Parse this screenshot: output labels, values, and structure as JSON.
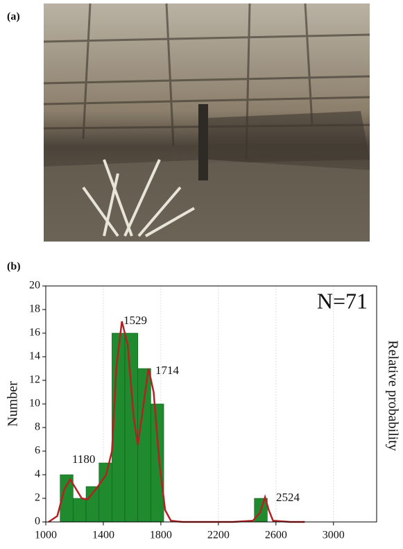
{
  "panels": [
    "(a)",
    "(b)"
  ],
  "chart_data": {
    "type": "histogram",
    "ylabel": "Number",
    "y2label": "Relative probability",
    "annotations": [
      "1180",
      "1529",
      "1714",
      "2524",
      "N=71"
    ],
    "bins": [
      1100,
      1190,
      1280,
      1370,
      1460,
      1550,
      1640,
      1730,
      1820,
      1910,
      2000,
      2090,
      2180,
      2270,
      2360,
      2450,
      2540
    ],
    "counts": [
      4,
      2,
      3,
      5,
      16,
      16,
      13,
      10,
      0,
      0,
      0,
      0,
      0,
      0,
      0,
      2
    ],
    "color": "#1f8a2e",
    "curve": {
      "color": "#b22222",
      "x": [
        1020,
        1080,
        1130,
        1170,
        1200,
        1250,
        1290,
        1350,
        1420,
        1460,
        1490,
        1529,
        1570,
        1610,
        1640,
        1680,
        1714,
        1750,
        1790,
        1830,
        1870,
        1950,
        2300,
        2440,
        2490,
        2524,
        2550,
        2580,
        2700,
        2800
      ],
      "values": [
        0,
        0.5,
        2.8,
        3.6,
        3,
        2,
        1.9,
        2.8,
        4,
        6,
        13,
        17,
        15,
        9,
        6.5,
        10,
        13,
        11,
        5,
        1,
        0.1,
        0,
        0,
        0.1,
        0.8,
        2.1,
        1,
        0.1,
        0,
        0
      ]
    },
    "xlim": [
      1000,
      3300
    ],
    "xticks": [
      1000,
      1400,
      1800,
      2200,
      2600,
      3000
    ],
    "ylim": [
      0,
      20
    ],
    "yticks": [
      0,
      2,
      4,
      6,
      8,
      10,
      12,
      14,
      16,
      18,
      20
    ],
    "grid": true
  }
}
